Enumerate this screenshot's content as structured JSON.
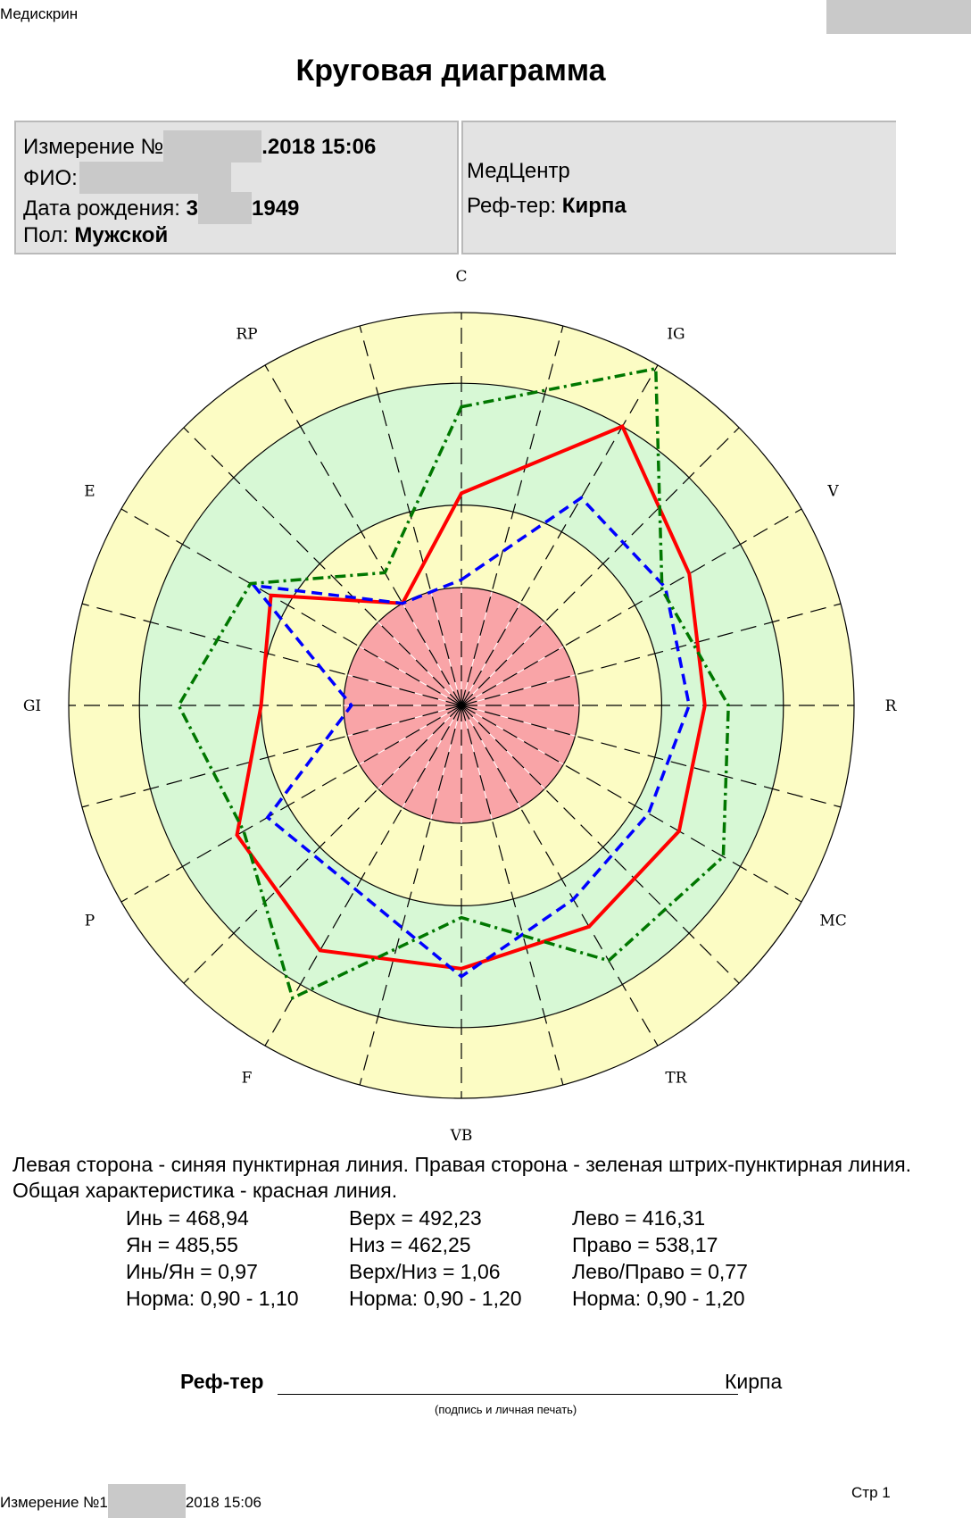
{
  "header": {
    "app_name": "Медискрин"
  },
  "title": "Круговая диаграмма",
  "panel_left": {
    "measurement_label": "Измерение №",
    "measurement_value": ".2018 15:06",
    "fio_label": "ФИО:",
    "dob_label": "Дата рождения:",
    "dob_prefix": "3",
    "dob_value": "1949",
    "sex_label": "Пол:",
    "sex_value": "Мужской"
  },
  "panel_right": {
    "center": "МедЦентр",
    "ref_label": "Реф-тер:",
    "ref_value": "Кирпа"
  },
  "chart_data": {
    "type": "radar",
    "axes": [
      "C",
      "IG",
      "V",
      "R",
      "MC",
      "TR",
      "VB",
      "F",
      "P",
      "GI",
      "E",
      "RP"
    ],
    "zones": [
      {
        "name": "red",
        "r": 0.3,
        "color": "#f9a4a7"
      },
      {
        "name": "yellow-inner",
        "r": 0.51,
        "color": "#fcfcc4"
      },
      {
        "name": "green",
        "r": 0.82,
        "color": "#d7f8d5"
      },
      {
        "name": "yellow-outer",
        "r": 1.0,
        "color": "#fcfcc4"
      }
    ],
    "sector_line_color": "#000000",
    "series": [
      {
        "name": "Общая характеристика",
        "color": "#ff0000",
        "style": "solid",
        "values": [
          0.54,
          0.82,
          0.67,
          0.62,
          0.64,
          0.65,
          0.67,
          0.72,
          0.66,
          0.51,
          0.56,
          0.3
        ]
      },
      {
        "name": "Левая сторона",
        "color": "#0000ff",
        "style": "dashed",
        "values": [
          0.32,
          0.61,
          0.6,
          0.58,
          0.55,
          0.57,
          0.69,
          0.54,
          0.57,
          0.28,
          0.61,
          0.3
        ]
      },
      {
        "name": "Правая сторона",
        "color": "#007700",
        "style": "dashdot",
        "values": [
          0.76,
          0.99,
          0.59,
          0.68,
          0.77,
          0.75,
          0.54,
          0.86,
          0.64,
          0.72,
          0.62,
          0.39
        ]
      }
    ]
  },
  "legend_text": "Левая сторона - синяя пунктирная линия. Правая сторона - зеленая штрих-пунктирная линия. Общая характеристика - красная линия.",
  "stats": {
    "col1": [
      "Инь = 468,94",
      "Ян = 485,55",
      "Инь/Ян = 0,97",
      "Норма: 0,90 - 1,10"
    ],
    "col2": [
      "Верх = 492,23",
      "Низ = 462,25",
      "Верх/Низ = 1,06",
      "Норма: 0,90 - 1,20"
    ],
    "col3": [
      "Лево = 416,31",
      "Право = 538,17",
      "Лево/Право = 0,77",
      "Норма: 0,90 - 1,20"
    ]
  },
  "signature": {
    "label": "Реф-тер",
    "name": "Кирпа",
    "note": "(подпись и личная печать)"
  },
  "footer": {
    "measure_label": "Измерение №1",
    "measure_value": "2018 15:06",
    "page": "Стр 1"
  }
}
